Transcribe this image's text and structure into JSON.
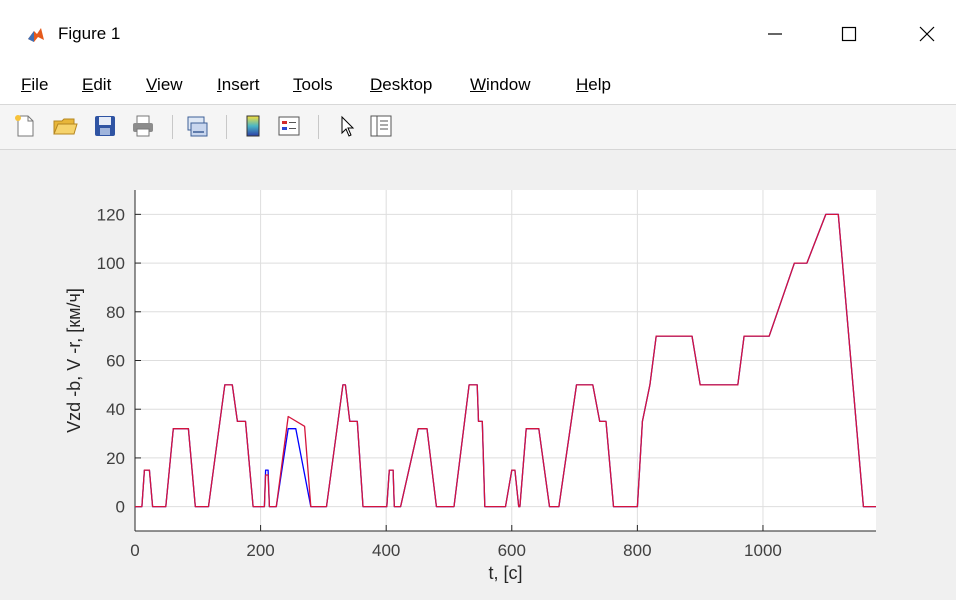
{
  "window": {
    "title": "Figure 1"
  },
  "menu": [
    {
      "label": "File",
      "key": "F",
      "rest": "ile"
    },
    {
      "label": "Edit",
      "key": "E",
      "rest": "dit"
    },
    {
      "label": "View",
      "key": "V",
      "rest": "iew"
    },
    {
      "label": "Insert",
      "key": "I",
      "rest": "nsert"
    },
    {
      "label": "Tools",
      "key": "T",
      "rest": "ools"
    },
    {
      "label": "Desktop",
      "key": "D",
      "rest": "esktop"
    },
    {
      "label": "Window",
      "key": "W",
      "rest": "indow"
    },
    {
      "label": "Help",
      "key": "H",
      "rest": "elp"
    }
  ],
  "toolbar": [
    "new-figure-icon",
    "open-file-icon",
    "save-icon",
    "print-icon",
    "link-plot-icon",
    "insert-colorbar-icon",
    "insert-legend-icon",
    "edit-plot-icon",
    "open-property-inspector-icon"
  ],
  "chart_data": {
    "type": "line",
    "title": "",
    "xlabel": "t, [c]",
    "ylabel": "Vzd -b,  V -r,  [км/ч]",
    "xlim": [
      0,
      1180
    ],
    "ylim": [
      -10,
      130
    ],
    "xticks": [
      0,
      200,
      400,
      600,
      800,
      1000
    ],
    "yticks": [
      0,
      20,
      40,
      60,
      80,
      100,
      120
    ],
    "grid": true,
    "series": [
      {
        "color": "#0000ff",
        "x": [
          0,
          11,
          15,
          23,
          28,
          49,
          61,
          85,
          96,
          117,
          143,
          155,
          163,
          176,
          188,
          195,
          206,
          208,
          212,
          214,
          219,
          225,
          244,
          256,
          280,
          285,
          297,
          305,
          331,
          335,
          342,
          354,
          363,
          373,
          390,
          401,
          405,
          411,
          413,
          423,
          451,
          465,
          480,
          508,
          532,
          545,
          547,
          553,
          557,
          563,
          575,
          590,
          600,
          605,
          611,
          613,
          623,
          643,
          660,
          675,
          703,
          729,
          740,
          750,
          762,
          765,
          780,
          790,
          800,
          808,
          820,
          830,
          850,
          887,
          900,
          960,
          970,
          1010,
          1050,
          1070,
          1100,
          1120,
          1160,
          1170,
          1180
        ],
        "y": [
          0,
          0,
          15,
          15,
          0,
          0,
          32,
          32,
          0,
          0,
          50,
          50,
          35,
          35,
          0,
          0,
          0,
          15,
          15,
          0,
          0,
          0,
          32,
          32,
          0,
          0,
          0,
          0,
          50,
          50,
          35,
          35,
          0,
          0,
          0,
          0,
          15,
          15,
          0,
          0,
          32,
          32,
          0,
          0,
          50,
          50,
          35,
          35,
          0,
          0,
          0,
          0,
          15,
          15,
          0,
          0,
          32,
          32,
          0,
          0,
          50,
          50,
          35,
          35,
          0,
          0,
          0,
          0,
          0,
          35,
          50,
          70,
          70,
          70,
          50,
          50,
          70,
          70,
          100,
          100,
          120,
          120,
          0,
          0,
          0
        ]
      },
      {
        "color": "#d4143c",
        "x": [
          0,
          11,
          15,
          23,
          28,
          49,
          61,
          85,
          96,
          117,
          143,
          155,
          163,
          176,
          188,
          195,
          206,
          208,
          212,
          214,
          219,
          225,
          244,
          270,
          280,
          285,
          297,
          305,
          331,
          335,
          342,
          354,
          363,
          373,
          390,
          401,
          405,
          411,
          413,
          423,
          451,
          465,
          480,
          508,
          532,
          545,
          547,
          553,
          557,
          563,
          575,
          590,
          600,
          605,
          611,
          613,
          623,
          643,
          660,
          675,
          703,
          729,
          740,
          750,
          762,
          765,
          780,
          790,
          800,
          808,
          820,
          830,
          850,
          887,
          900,
          960,
          970,
          1010,
          1050,
          1070,
          1100,
          1120,
          1160,
          1170,
          1180
        ],
        "y": [
          0,
          0,
          15,
          15,
          0,
          0,
          32,
          32,
          0,
          0,
          50,
          50,
          35,
          35,
          0,
          0,
          0,
          13,
          13,
          0,
          0,
          0,
          37,
          33,
          0,
          0,
          0,
          0,
          50,
          50,
          35,
          35,
          0,
          0,
          0,
          0,
          15,
          15,
          0,
          0,
          32,
          32,
          0,
          0,
          50,
          50,
          35,
          35,
          0,
          0,
          0,
          0,
          15,
          15,
          0,
          0,
          32,
          32,
          0,
          0,
          50,
          50,
          35,
          35,
          0,
          0,
          0,
          0,
          0,
          35,
          50,
          70,
          70,
          70,
          50,
          50,
          70,
          70,
          100,
          100,
          120,
          120,
          0,
          0,
          0
        ]
      }
    ]
  }
}
